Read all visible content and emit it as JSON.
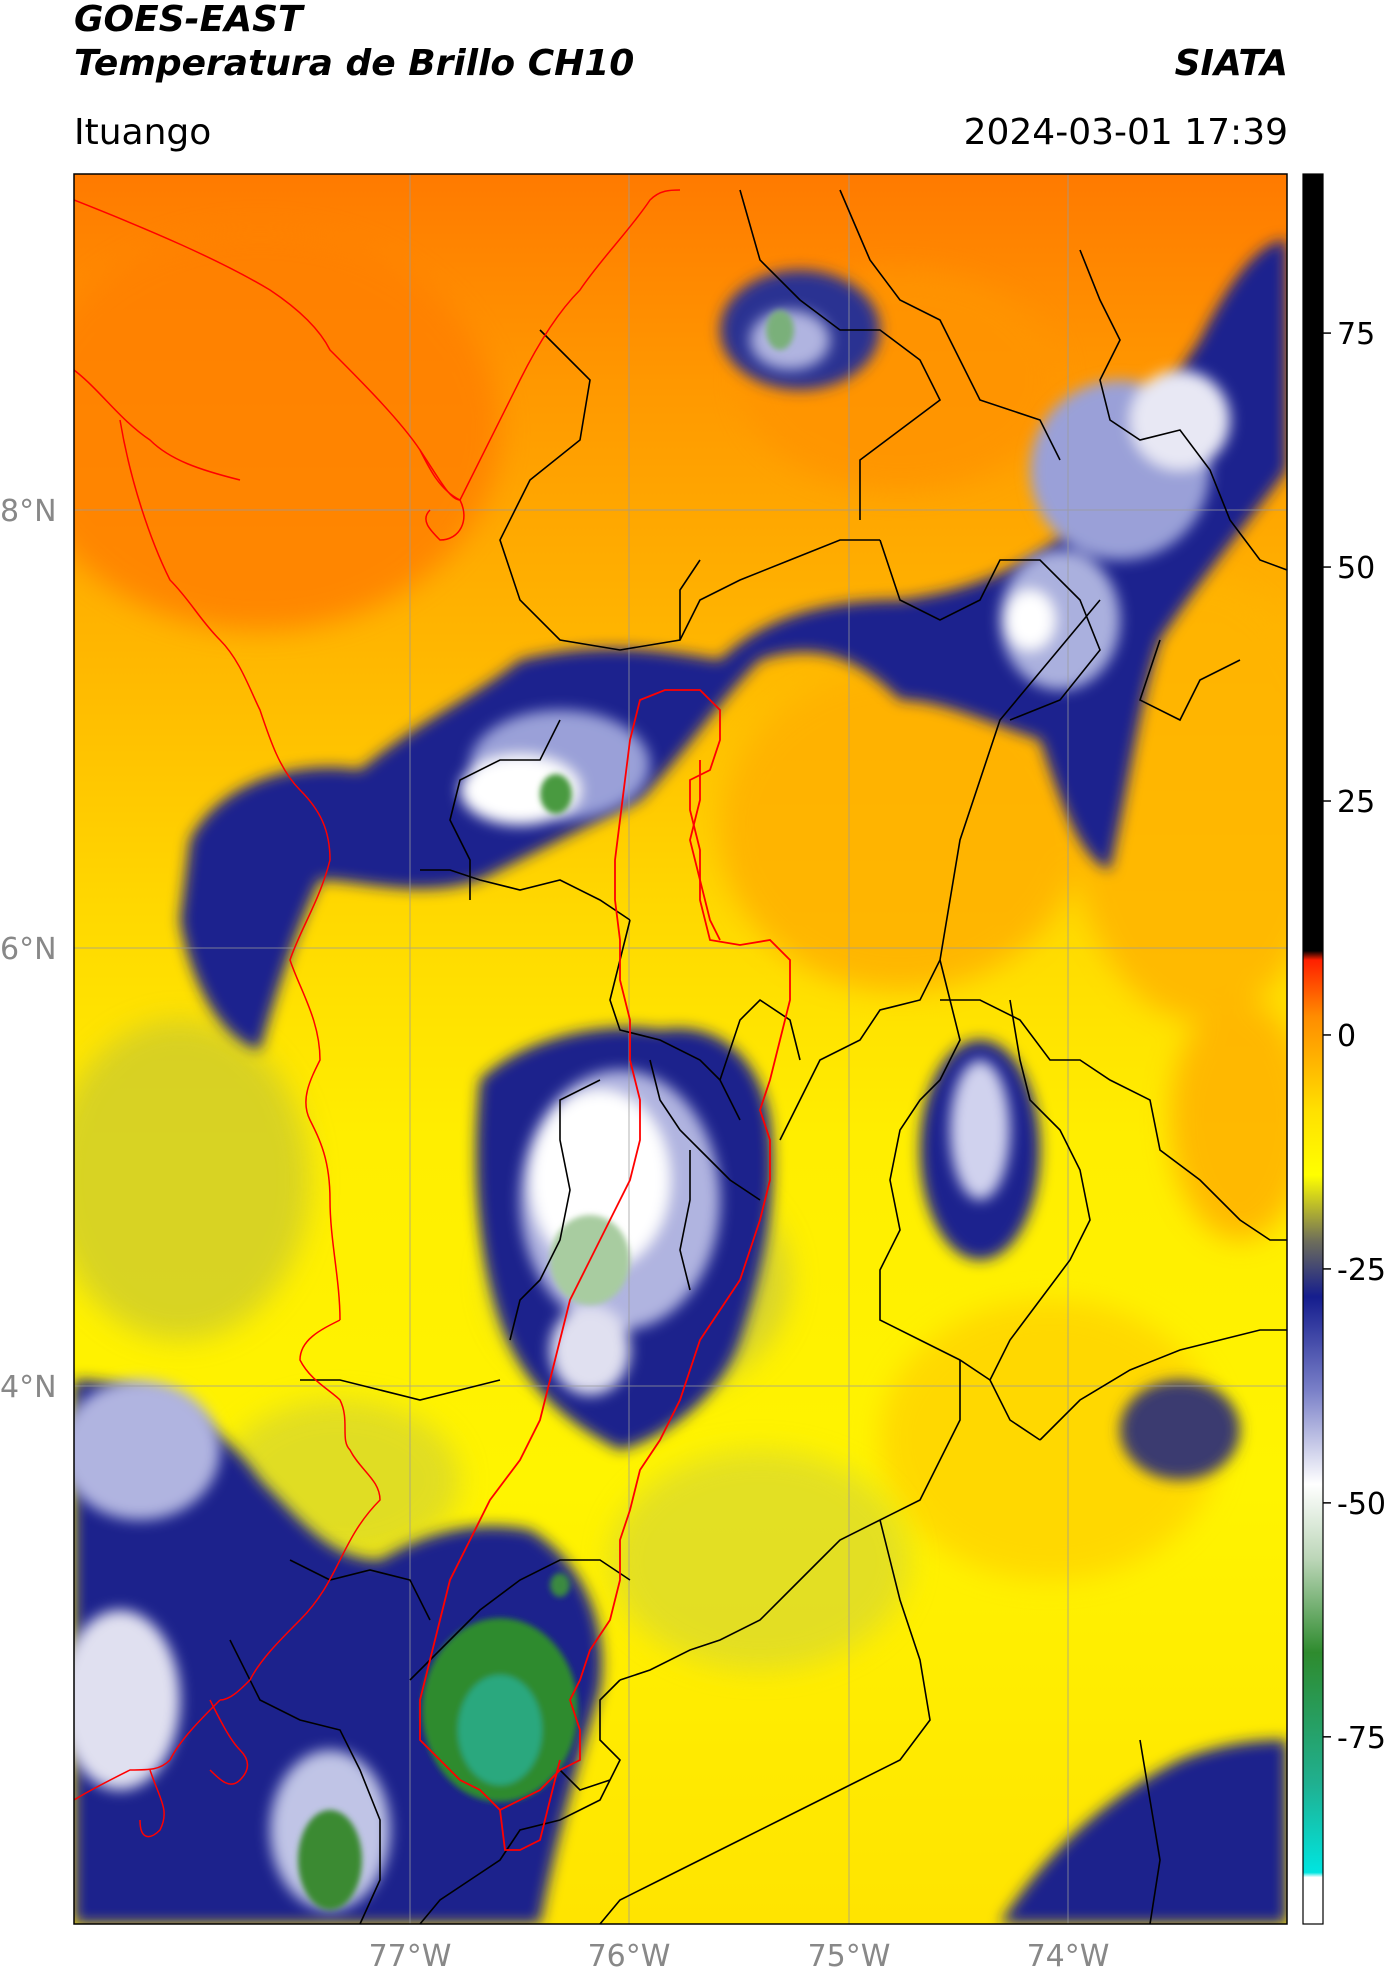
{
  "header": {
    "satellite": "GOES-EAST",
    "product": "Temperatura de Brillo CH10",
    "brand": "SIATA",
    "region": "Ituango",
    "datetime": "2024-03-01 17:39"
  },
  "map": {
    "lat_labels": [
      "8°N",
      "6°N",
      "4°N"
    ],
    "lon_labels": [
      "77°W",
      "76°W",
      "75°W",
      "74°W"
    ],
    "colorbar": {
      "tick_labels": [
        "75",
        "50",
        "25",
        "0",
        "-25",
        "-50",
        "-75"
      ],
      "ticks": [
        75,
        50,
        25,
        0,
        -25,
        -50,
        -75
      ],
      "range": [
        -95,
        92
      ],
      "stops": [
        {
          "v": -95,
          "c": "#ffffff"
        },
        {
          "v": -90,
          "c": "#ffffff"
        },
        {
          "v": -89.5,
          "c": "#00e5e0"
        },
        {
          "v": -80,
          "c": "#20b090"
        },
        {
          "v": -66,
          "c": "#2e8b2e"
        },
        {
          "v": -56,
          "c": "#bcd6b8"
        },
        {
          "v": -48,
          "c": "#ffffff"
        },
        {
          "v": -38,
          "c": "#7a80c8"
        },
        {
          "v": -28,
          "c": "#151d8e"
        },
        {
          "v": -22,
          "c": "#6e6e5a"
        },
        {
          "v": -15,
          "c": "#ffff00"
        },
        {
          "v": -8,
          "c": "#ffe000"
        },
        {
          "v": 2,
          "c": "#ff8c00"
        },
        {
          "v": 8,
          "c": "#ff2000"
        },
        {
          "v": 9,
          "c": "#000000"
        },
        {
          "v": 92,
          "c": "#000000"
        }
      ]
    }
  }
}
